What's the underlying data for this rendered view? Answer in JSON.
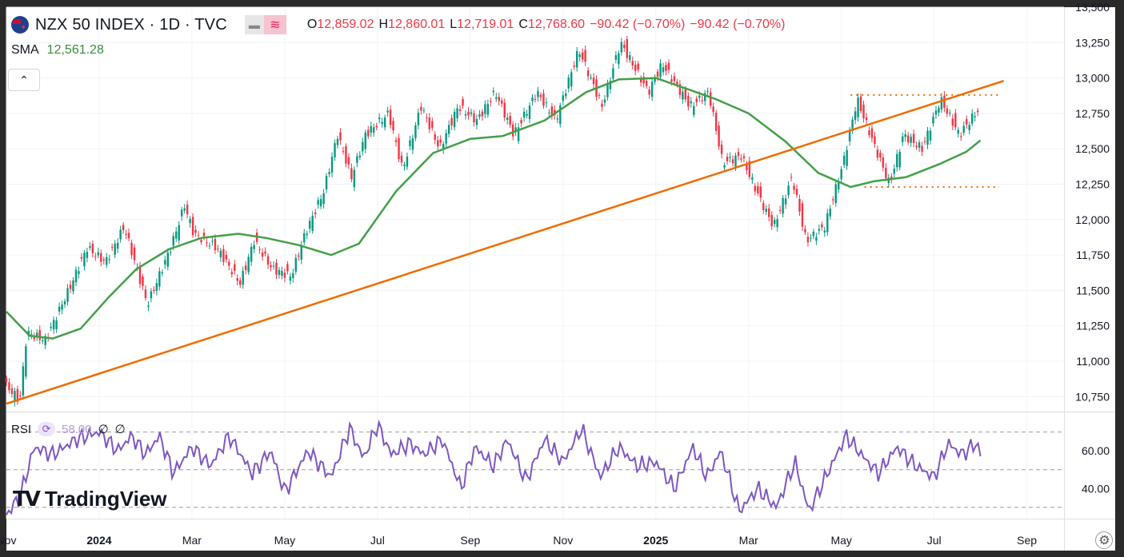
{
  "header": {
    "symbol_title": "NZX 50 INDEX · 1D · TVC",
    "ohlc": {
      "open_key": "O",
      "open": "12,859.02",
      "high_key": "H",
      "high": "12,860.01",
      "low_key": "L",
      "low": "12,719.01",
      "close_key": "C",
      "close": "12,768.60",
      "change": "−90.42 (−0.70%)",
      "change2": "−90.42 (−0.70%)"
    },
    "sma_label": "SMA",
    "sma_value": "12,561.28",
    "collapse_icon": "chevron-up-icon"
  },
  "rsi_pane": {
    "label": "RSI",
    "value": "58.00",
    "extra1": "∅",
    "extra2": "∅"
  },
  "logo": {
    "mark": "TV",
    "text": "TradingView"
  },
  "colors": {
    "up": "#089981",
    "down": "#f23645",
    "sma": "#43a047",
    "trendline": "#ef6c00",
    "rsi": "#7e57c2",
    "grid": "#f0f3fa"
  },
  "chart_data": {
    "type": "candlestick",
    "title": "NZX 50 INDEX · 1D · TVC",
    "price_ticks": [
      "13,500",
      "13,250",
      "13,000",
      "12,750",
      "12,500",
      "12,250",
      "12,000",
      "11,750",
      "11,500",
      "11,250",
      "11,000",
      "10,750"
    ],
    "price_range": [
      10650,
      13500
    ],
    "rsi_ticks": [
      "60.00",
      "40.00"
    ],
    "rsi_range": [
      24,
      80
    ],
    "rsi_levels": [
      70,
      50,
      30
    ],
    "time_labels": [
      "Nov",
      "2024",
      "Mar",
      "May",
      "Jul",
      "Sep",
      "Nov",
      "2025",
      "Mar",
      "May",
      "Jul",
      "Sep"
    ],
    "time_label_months": [
      0,
      2,
      4,
      6,
      8,
      10,
      12,
      14,
      16,
      18,
      20,
      22
    ],
    "time_range_months": [
      0,
      22.8
    ],
    "price_path_months": [
      0,
      0.35,
      0.5,
      0.9,
      1.4,
      1.8,
      2.2,
      2.6,
      3.1,
      3.6,
      3.9,
      4.1,
      4.6,
      5.1,
      5.4,
      5.8,
      6.2,
      6.5,
      6.9,
      7.2,
      7.5,
      7.8,
      8.3,
      8.6,
      9.0,
      9.4,
      9.8,
      10.2,
      10.6,
      11.0,
      11.5,
      11.9,
      12.4,
      12.9,
      13.3,
      13.9,
      14.2,
      14.8,
      15.2,
      15.5,
      15.9,
      16.3,
      16.6,
      17.0,
      17.3,
      17.7,
      18.1,
      18.4,
      18.8,
      19.1,
      19.4,
      19.8,
      20.2,
      20.6,
      21.0
    ],
    "price_path_values": [
      10850,
      10720,
      11200,
      11150,
      11500,
      11800,
      11700,
      11950,
      11400,
      11800,
      12100,
      11900,
      11800,
      11550,
      11850,
      11650,
      11600,
      11900,
      12200,
      12600,
      12300,
      12600,
      12750,
      12350,
      12800,
      12500,
      12800,
      12700,
      12900,
      12600,
      12900,
      12700,
      13200,
      12800,
      13250,
      12900,
      13100,
      12800,
      12900,
      12400,
      12450,
      12150,
      11950,
      12300,
      11850,
      11950,
      12400,
      12850,
      12500,
      12250,
      12600,
      12500,
      12850,
      12600,
      12770
    ],
    "sma_path_months": [
      0,
      0.5,
      1.0,
      1.6,
      2.2,
      2.8,
      3.5,
      4.2,
      5.0,
      5.6,
      6.3,
      7.0,
      7.6,
      8.4,
      9.2,
      10.0,
      10.7,
      11.6,
      12.5,
      13.2,
      14.0,
      14.7,
      15.3,
      16.0,
      16.8,
      17.5,
      18.2,
      18.7,
      19.4,
      20.1,
      20.7,
      21.0
    ],
    "sma_path_values": [
      11350,
      11180,
      11160,
      11230,
      11450,
      11650,
      11790,
      11870,
      11900,
      11870,
      11820,
      11750,
      11830,
      12200,
      12470,
      12570,
      12590,
      12700,
      12900,
      12990,
      13000,
      12920,
      12850,
      12750,
      12550,
      12330,
      12230,
      12270,
      12300,
      12390,
      12480,
      12560
    ],
    "trendline": {
      "x": [
        0,
        21.5
      ],
      "y": [
        10700,
        12980
      ]
    },
    "resistance_line": {
      "x": [
        18.2,
        21.4
      ],
      "y": [
        12880,
        12880
      ]
    },
    "support_line": {
      "x": [
        18.5,
        21.4
      ],
      "y": [
        12230,
        12230
      ]
    },
    "rsi_path_months": [
      0,
      0.3,
      0.6,
      1.0,
      1.5,
      2.0,
      2.4,
      2.7,
      3.0,
      3.3,
      3.6,
      4.0,
      4.4,
      4.8,
      5.3,
      5.7,
      6.0,
      6.5,
      7.0,
      7.4,
      7.7,
      8.0,
      8.3,
      8.7,
      9.0,
      9.4,
      9.8,
      10.1,
      10.5,
      10.8,
      11.2,
      11.6,
      12.0,
      12.4,
      12.8,
      13.2,
      13.6,
      14.0,
      14.4,
      14.8,
      15.1,
      15.4,
      15.8,
      16.2,
      16.6,
      17.0,
      17.3,
      17.7,
      18.1,
      18.5,
      18.8,
      19.2,
      19.6,
      20.0,
      20.3,
      20.6,
      20.9,
      21.0
    ],
    "rsi_path_values": [
      26,
      36,
      62,
      58,
      66,
      70,
      60,
      68,
      58,
      68,
      48,
      62,
      52,
      68,
      48,
      60,
      38,
      60,
      46,
      72,
      56,
      74,
      58,
      64,
      58,
      66,
      40,
      62,
      52,
      66,
      44,
      66,
      54,
      72,
      46,
      62,
      52,
      54,
      40,
      62,
      46,
      60,
      28,
      40,
      30,
      54,
      28,
      48,
      68,
      56,
      48,
      62,
      52,
      46,
      64,
      58,
      64,
      58
    ],
    "last_price": 12768.6,
    "last_rsi": 58.0
  }
}
